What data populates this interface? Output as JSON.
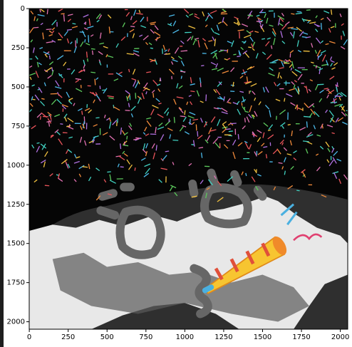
{
  "chart_data": {
    "type": "image",
    "xlim": [
      -0.5,
      2047.5
    ],
    "ylim": [
      2047.5,
      -0.5
    ],
    "xticks": [
      0,
      250,
      500,
      750,
      1000,
      1250,
      1500,
      1750,
      2000
    ],
    "yticks": [
      0,
      250,
      500,
      750,
      1000,
      1250,
      1500,
      1750,
      2000
    ]
  }
}
